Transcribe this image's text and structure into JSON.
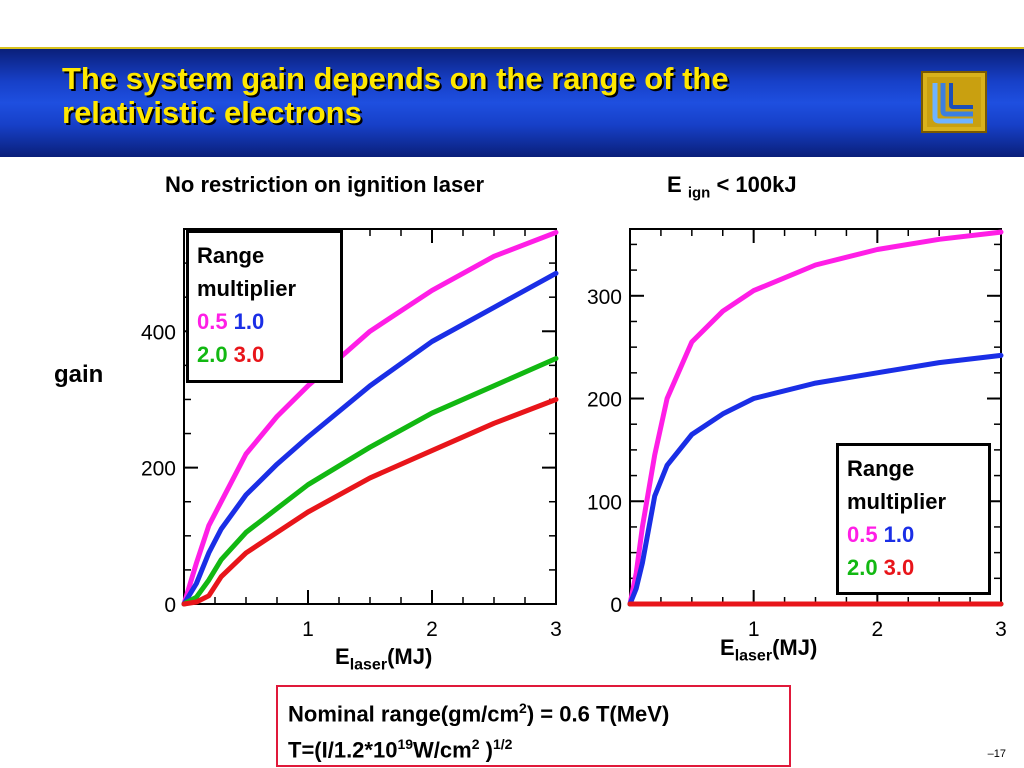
{
  "slide": {
    "title": "The system gain depends on the range of the relativistic electrons",
    "page_number": "–17"
  },
  "captions": {
    "left": "No restriction on ignition laser",
    "right_prefix": "E",
    "right_sub": "ign",
    "right_suffix": "< 100kJ"
  },
  "axis": {
    "ylabel": "gain",
    "xlabel_main": "E",
    "xlabel_sub": "laser",
    "xlabel_unit": "(MJ)"
  },
  "legend": {
    "title_line1": "Range",
    "title_line2": "multiplier",
    "items": [
      {
        "label": "0.5",
        "color": "#ff1ee6"
      },
      {
        "label": "1.0",
        "color": "#1a2ee6"
      },
      {
        "label": "2.0",
        "color": "#12b812"
      },
      {
        "label": "3.0",
        "color": "#e8151a"
      }
    ]
  },
  "formula": {
    "line1_a": "Nominal range(gm/cm",
    "line1_sup": "2",
    "line1_b": ") = 0.6 T(MeV)",
    "line2_a": "T=(I/1.2*10",
    "line2_sup1": "19",
    "line2_b": "W/cm",
    "line2_sup2": "2",
    "line2_c": " )",
    "line2_sup3": "1/2"
  },
  "chart_data": [
    {
      "type": "line",
      "title": "No restriction on ignition laser",
      "xlabel": "Elaser(MJ)",
      "ylabel": "gain",
      "xlim": [
        0,
        3
      ],
      "ylim": [
        0,
        550
      ],
      "xticks": [
        1,
        2,
        3
      ],
      "yticks": [
        0,
        200,
        400
      ],
      "series": [
        {
          "name": "0.5",
          "color": "#ff1ee6",
          "x": [
            0,
            0.1,
            0.2,
            0.3,
            0.5,
            0.75,
            1.0,
            1.5,
            2.0,
            2.5,
            3.0
          ],
          "y": [
            0,
            60,
            115,
            150,
            220,
            275,
            320,
            400,
            460,
            510,
            545
          ]
        },
        {
          "name": "1.0",
          "color": "#1a2ee6",
          "x": [
            0,
            0.1,
            0.2,
            0.3,
            0.5,
            0.75,
            1.0,
            1.5,
            2.0,
            2.5,
            3.0
          ],
          "y": [
            0,
            30,
            75,
            110,
            160,
            205,
            245,
            320,
            385,
            435,
            485
          ]
        },
        {
          "name": "2.0",
          "color": "#12b812",
          "x": [
            0,
            0.1,
            0.2,
            0.3,
            0.5,
            0.75,
            1.0,
            1.5,
            2.0,
            2.5,
            3.0
          ],
          "y": [
            0,
            10,
            35,
            65,
            105,
            140,
            175,
            230,
            280,
            320,
            360
          ]
        },
        {
          "name": "3.0",
          "color": "#e8151a",
          "x": [
            0,
            0.1,
            0.2,
            0.3,
            0.5,
            0.75,
            1.0,
            1.5,
            2.0,
            2.5,
            3.0
          ],
          "y": [
            0,
            3,
            12,
            40,
            75,
            105,
            135,
            185,
            225,
            265,
            300
          ]
        }
      ]
    },
    {
      "type": "line",
      "title": "E ign < 100kJ",
      "xlabel": "Elaser(MJ)",
      "ylabel": "",
      "xlim": [
        0,
        3
      ],
      "ylim": [
        0,
        365
      ],
      "xticks": [
        1,
        2,
        3
      ],
      "yticks": [
        0,
        100,
        200,
        300
      ],
      "series": [
        {
          "name": "0.5",
          "color": "#ff1ee6",
          "x": [
            0,
            0.05,
            0.1,
            0.2,
            0.3,
            0.5,
            0.75,
            1.0,
            1.5,
            2.0,
            2.5,
            3.0
          ],
          "y": [
            0,
            30,
            75,
            145,
            200,
            255,
            285,
            305,
            330,
            345,
            355,
            362
          ]
        },
        {
          "name": "1.0",
          "color": "#1a2ee6",
          "x": [
            0,
            0.05,
            0.1,
            0.2,
            0.3,
            0.5,
            0.75,
            1.0,
            1.5,
            2.0,
            2.5,
            3.0
          ],
          "y": [
            0,
            15,
            40,
            105,
            135,
            165,
            185,
            200,
            215,
            225,
            235,
            242
          ]
        },
        {
          "name": "2.0",
          "color": "#12b812",
          "x": [
            0,
            3.0
          ],
          "y": [
            0,
            0
          ]
        },
        {
          "name": "3.0",
          "color": "#e8151a",
          "x": [
            0,
            3.0
          ],
          "y": [
            0,
            0
          ]
        }
      ]
    }
  ]
}
